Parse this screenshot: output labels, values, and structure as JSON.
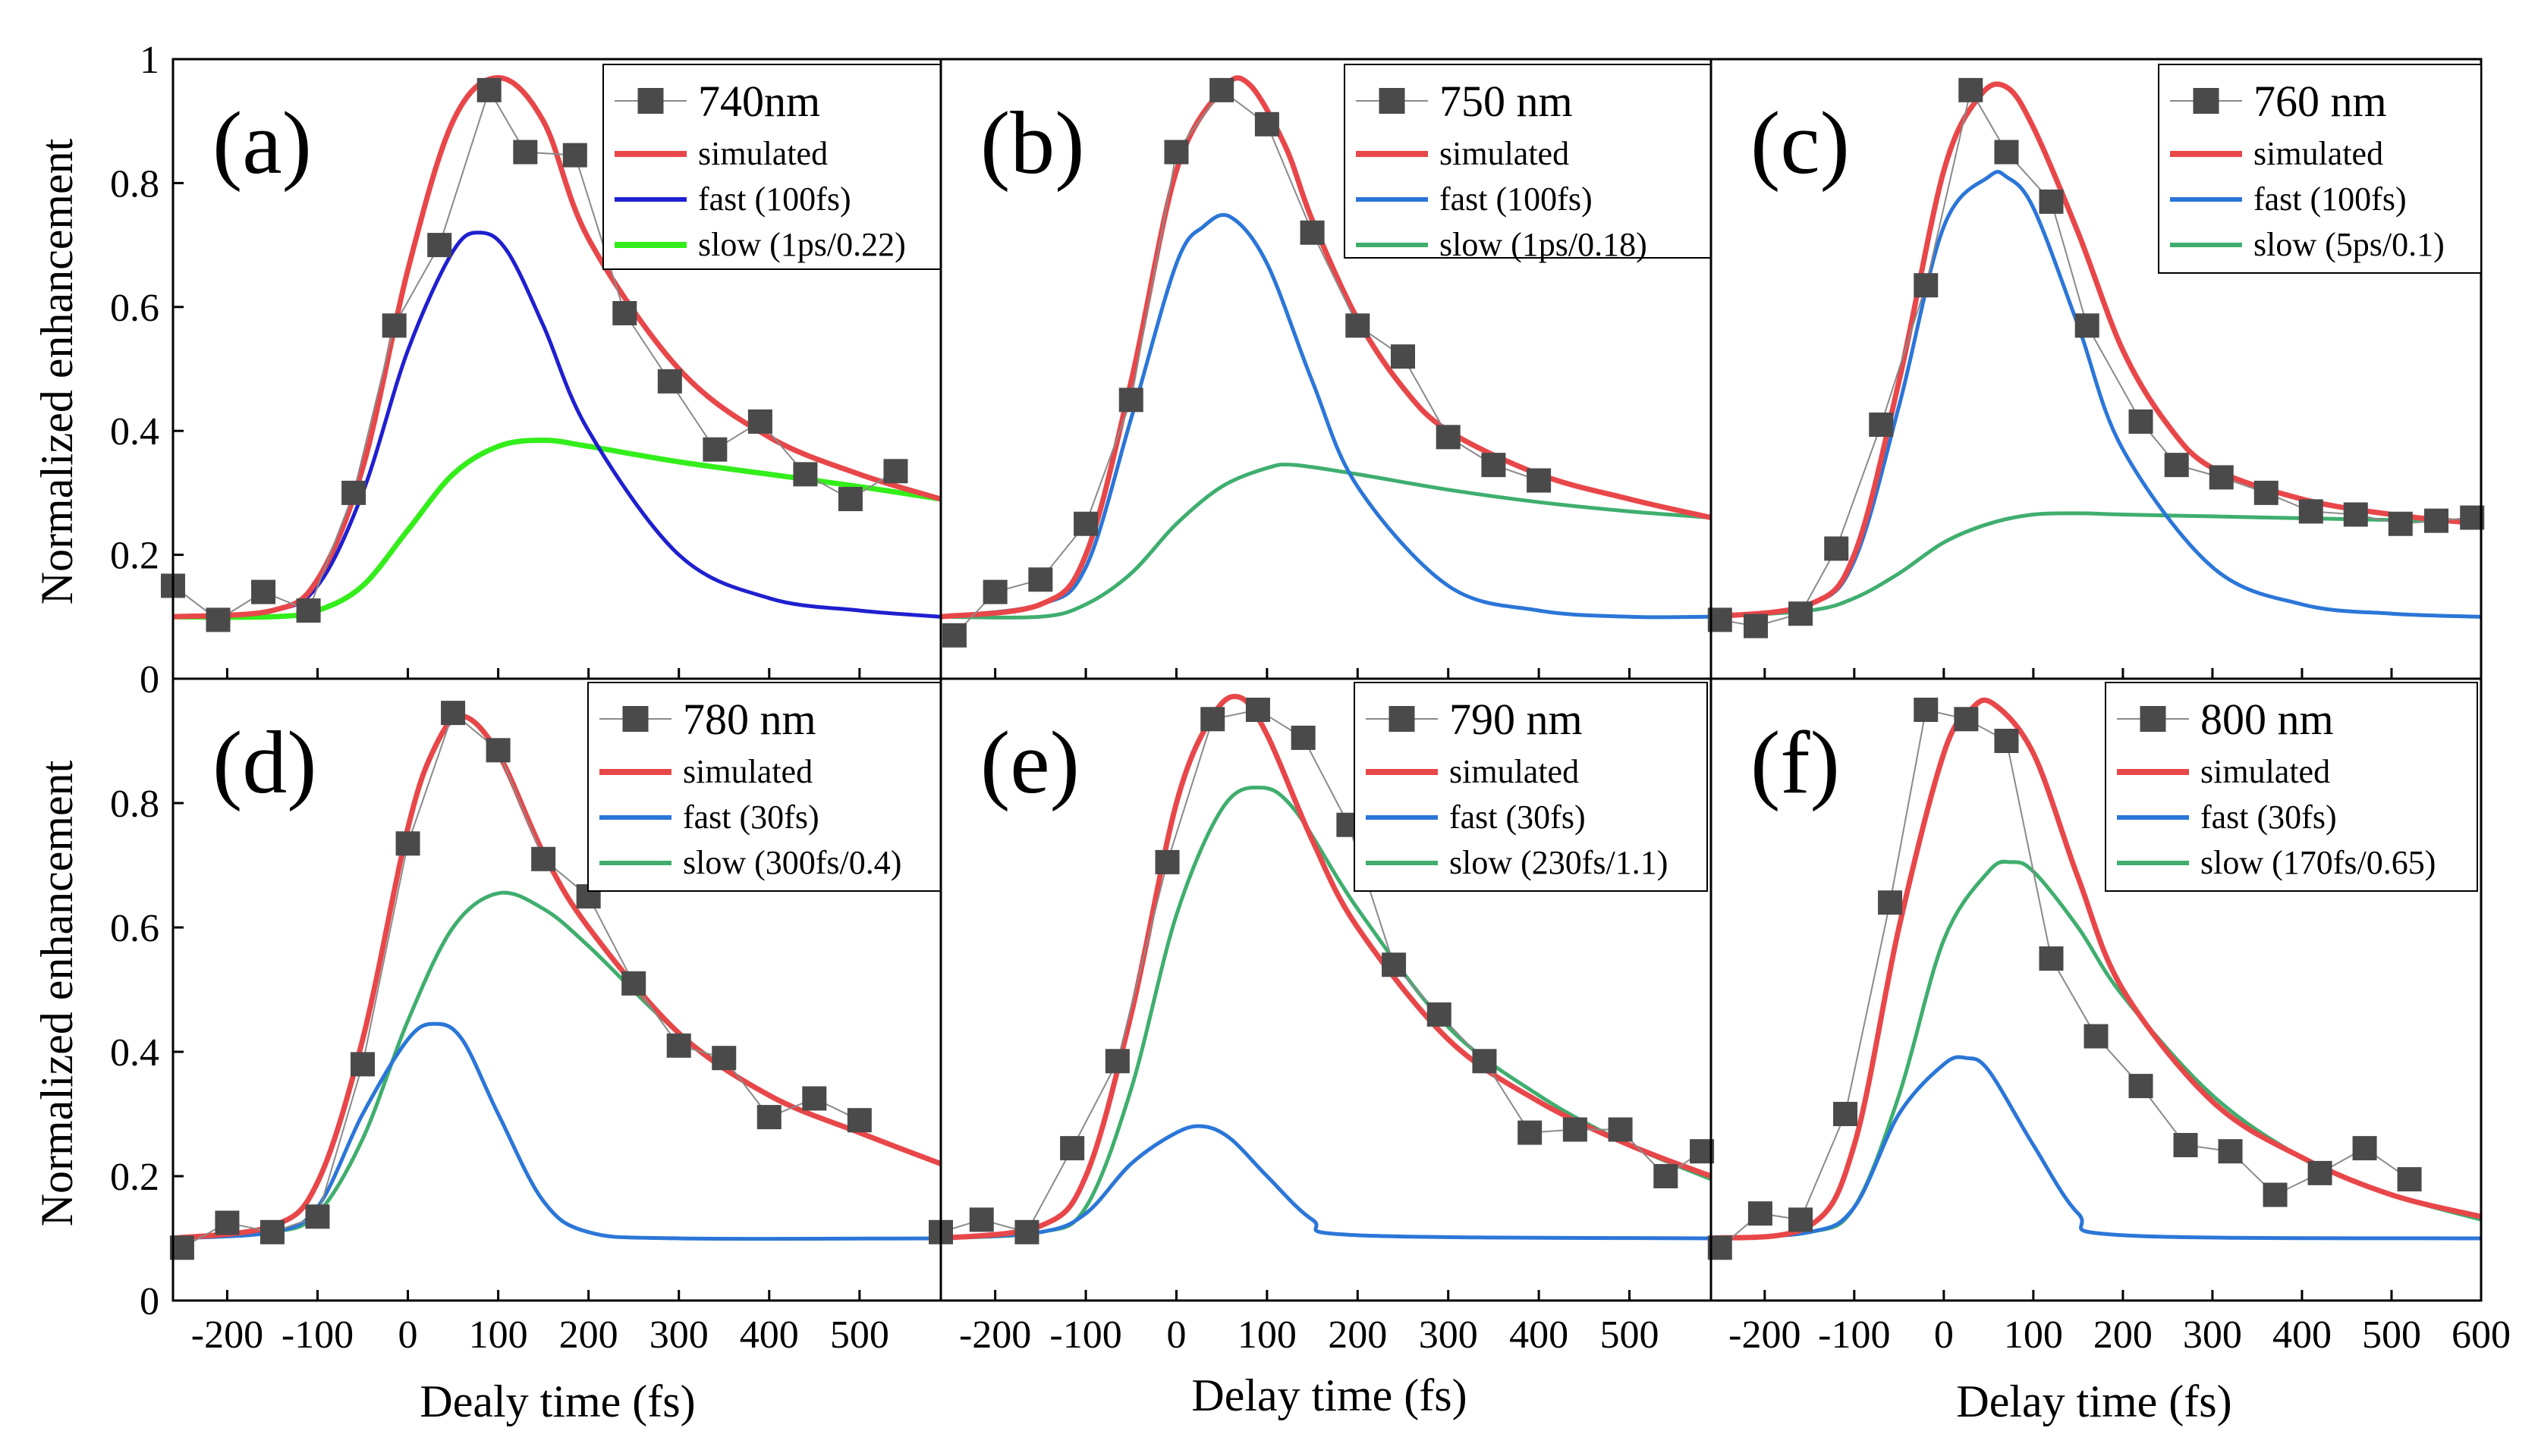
{
  "figure": {
    "ylabel": "Normalized enhancement",
    "xlabels": [
      "Dealy time (fs)",
      "Delay time (fs)",
      "Delay time (fs)"
    ],
    "yticks_top": [
      "0",
      "0.2",
      "0.4",
      "0.6",
      "0.8",
      "1"
    ],
    "yticks_bottom": [
      "0",
      "0.2",
      "0.4",
      "0.6",
      "0.8"
    ],
    "xticks_left": [
      "-200",
      "-100",
      "0",
      "100",
      "200",
      "300",
      "400",
      "500"
    ],
    "xticks_mid": [
      "-200",
      "-100",
      "0",
      "100",
      "200",
      "300",
      "400",
      "500"
    ],
    "xticks_right": [
      "-200",
      "-100",
      "0",
      "100",
      "200",
      "300",
      "400",
      "500",
      "600"
    ]
  },
  "colors": {
    "simulated": "#e8474a",
    "fast_a": "#1f1fd0",
    "slow_a": "#33ee1a",
    "fast": "#2b76d8",
    "slow": "#3fae6e",
    "data": "#4a4a4a"
  },
  "chart_data": [
    {
      "type": "line",
      "panel": "(a)",
      "xlim": [
        -260,
        590
      ],
      "ylim": [
        0,
        1
      ],
      "legend": {
        "data": "740nm",
        "simulated": "simulated",
        "fast": "fast (100fs)",
        "slow": "slow (1ps/0.22)"
      },
      "data_x": [
        -260,
        -210,
        -160,
        -110,
        -60,
        -15,
        35,
        90,
        130,
        185,
        240,
        290,
        340,
        390,
        440,
        490,
        540
      ],
      "data_y": [
        0.15,
        0.095,
        0.14,
        0.11,
        0.3,
        0.57,
        0.7,
        0.95,
        0.85,
        0.845,
        0.59,
        0.48,
        0.37,
        0.415,
        0.33,
        0.29,
        0.335
      ],
      "series": [
        {
          "name": "simulated",
          "x": [
            -260,
            -150,
            -100,
            -50,
            0,
            50,
            100,
            150,
            200,
            300,
            400,
            500,
            590
          ],
          "y": [
            0.1,
            0.11,
            0.16,
            0.34,
            0.66,
            0.9,
            0.97,
            0.9,
            0.71,
            0.5,
            0.39,
            0.33,
            0.29
          ]
        },
        {
          "name": "fast",
          "x": [
            -260,
            -150,
            -100,
            -50,
            0,
            50,
            80,
            110,
            150,
            200,
            300,
            400,
            500,
            590
          ],
          "y": [
            0.1,
            0.11,
            0.15,
            0.3,
            0.53,
            0.69,
            0.72,
            0.69,
            0.57,
            0.4,
            0.2,
            0.13,
            0.11,
            0.1
          ]
        },
        {
          "name": "slow",
          "x": [
            -260,
            -150,
            -100,
            -50,
            0,
            50,
            100,
            150,
            200,
            300,
            400,
            500,
            590
          ],
          "y": [
            0.1,
            0.1,
            0.11,
            0.15,
            0.24,
            0.33,
            0.375,
            0.385,
            0.375,
            0.35,
            0.33,
            0.31,
            0.29
          ]
        }
      ]
    },
    {
      "type": "line",
      "panel": "(b)",
      "xlim": [
        -260,
        590
      ],
      "ylim": [
        0,
        1
      ],
      "legend": {
        "data": "750 nm",
        "simulated": "simulated",
        "fast": "fast (100fs)",
        "slow": "slow (1ps/0.18)"
      },
      "data_x": [
        -245,
        -200,
        -150,
        -100,
        -50,
        0,
        50,
        100,
        150,
        200,
        250,
        300,
        350,
        400
      ],
      "data_y": [
        0.07,
        0.14,
        0.16,
        0.25,
        0.45,
        0.85,
        0.95,
        0.895,
        0.72,
        0.57,
        0.52,
        0.39,
        0.345,
        0.32
      ],
      "series": [
        {
          "name": "simulated",
          "x": [
            -260,
            -150,
            -100,
            -50,
            0,
            50,
            80,
            120,
            150,
            200,
            250,
            300,
            400,
            500,
            590
          ],
          "y": [
            0.1,
            0.12,
            0.2,
            0.48,
            0.82,
            0.95,
            0.96,
            0.86,
            0.74,
            0.58,
            0.47,
            0.4,
            0.33,
            0.29,
            0.26
          ]
        },
        {
          "name": "fast",
          "x": [
            -260,
            -150,
            -100,
            -50,
            0,
            30,
            60,
            100,
            150,
            200,
            300,
            400,
            500,
            590
          ],
          "y": [
            0.1,
            0.12,
            0.18,
            0.42,
            0.67,
            0.73,
            0.745,
            0.67,
            0.48,
            0.31,
            0.15,
            0.11,
            0.1,
            0.1
          ]
        },
        {
          "name": "slow",
          "x": [
            -260,
            -150,
            -100,
            -50,
            0,
            50,
            100,
            130,
            200,
            300,
            400,
            500,
            590
          ],
          "y": [
            0.1,
            0.1,
            0.12,
            0.17,
            0.25,
            0.31,
            0.34,
            0.345,
            0.33,
            0.305,
            0.285,
            0.27,
            0.26
          ]
        }
      ]
    },
    {
      "type": "line",
      "panel": "(c)",
      "xlim": [
        -260,
        600
      ],
      "ylim": [
        0,
        1
      ],
      "legend": {
        "data": "760 nm",
        "simulated": "simulated",
        "fast": "fast (100fs)",
        "slow": "slow (5ps/0.1)"
      },
      "data_x": [
        -250,
        -210,
        -160,
        -120,
        -70,
        -20,
        30,
        70,
        120,
        160,
        220,
        260,
        310,
        360,
        410,
        460,
        510,
        550,
        590
      ],
      "data_y": [
        0.095,
        0.085,
        0.105,
        0.21,
        0.41,
        0.635,
        0.95,
        0.85,
        0.77,
        0.57,
        0.415,
        0.345,
        0.325,
        0.3,
        0.27,
        0.265,
        0.25,
        0.255,
        0.26
      ],
      "series": [
        {
          "name": "simulated",
          "x": [
            -260,
            -150,
            -100,
            -50,
            0,
            40,
            70,
            100,
            150,
            200,
            250,
            300,
            400,
            500,
            600
          ],
          "y": [
            0.1,
            0.12,
            0.2,
            0.48,
            0.82,
            0.94,
            0.955,
            0.89,
            0.72,
            0.53,
            0.41,
            0.34,
            0.29,
            0.265,
            0.25
          ]
        },
        {
          "name": "fast",
          "x": [
            -260,
            -150,
            -100,
            -50,
            0,
            50,
            70,
            100,
            150,
            200,
            300,
            400,
            500,
            600
          ],
          "y": [
            0.1,
            0.12,
            0.19,
            0.44,
            0.73,
            0.81,
            0.81,
            0.76,
            0.57,
            0.37,
            0.18,
            0.12,
            0.105,
            0.1
          ]
        },
        {
          "name": "slow",
          "x": [
            -260,
            -150,
            -100,
            -50,
            0,
            50,
            100,
            150,
            200,
            300,
            400,
            500,
            600
          ],
          "y": [
            0.1,
            0.11,
            0.13,
            0.17,
            0.22,
            0.25,
            0.265,
            0.267,
            0.265,
            0.262,
            0.259,
            0.256,
            0.253
          ]
        }
      ]
    },
    {
      "type": "line",
      "panel": "(d)",
      "xlim": [
        -260,
        590
      ],
      "ylim": [
        0,
        1
      ],
      "legend": {
        "data": "780 nm",
        "simulated": "simulated",
        "fast": "fast (30fs)",
        "slow": "slow (300fs/0.4)"
      },
      "data_x": [
        -250,
        -200,
        -150,
        -100,
        -50,
        0,
        50,
        100,
        150,
        200,
        250,
        300,
        350,
        400,
        450,
        500
      ],
      "data_y": [
        0.085,
        0.125,
        0.11,
        0.135,
        0.38,
        0.735,
        0.945,
        0.885,
        0.71,
        0.65,
        0.51,
        0.41,
        0.39,
        0.295,
        0.325,
        0.29
      ],
      "series": [
        {
          "name": "simulated",
          "x": [
            -260,
            -150,
            -100,
            -50,
            0,
            30,
            60,
            100,
            150,
            200,
            300,
            400,
            500,
            590
          ],
          "y": [
            0.1,
            0.12,
            0.19,
            0.42,
            0.76,
            0.89,
            0.94,
            0.88,
            0.72,
            0.6,
            0.43,
            0.33,
            0.27,
            0.22
          ]
        },
        {
          "name": "fast",
          "x": [
            -260,
            -150,
            -100,
            -50,
            0,
            30,
            60,
            100,
            150,
            200,
            300,
            590
          ],
          "y": [
            0.1,
            0.11,
            0.15,
            0.3,
            0.42,
            0.445,
            0.42,
            0.3,
            0.16,
            0.11,
            0.1,
            0.1
          ]
        },
        {
          "name": "slow",
          "x": [
            -260,
            -150,
            -100,
            -50,
            0,
            50,
            100,
            150,
            200,
            300,
            400,
            500,
            590
          ],
          "y": [
            0.1,
            0.11,
            0.14,
            0.26,
            0.45,
            0.6,
            0.655,
            0.63,
            0.57,
            0.43,
            0.33,
            0.27,
            0.22
          ]
        }
      ]
    },
    {
      "type": "line",
      "panel": "(e)",
      "xlim": [
        -260,
        590
      ],
      "ylim": [
        0,
        1
      ],
      "legend": {
        "data": "790 nm",
        "simulated": "simulated",
        "fast": "fast (30fs)",
        "slow": "slow (230fs/1.1)"
      },
      "data_x": [
        -260,
        -215,
        -165,
        -115,
        -65,
        -10,
        40,
        90,
        140,
        190,
        240,
        290,
        340,
        390,
        440,
        490,
        540,
        580
      ],
      "data_y": [
        0.11,
        0.13,
        0.11,
        0.245,
        0.385,
        0.705,
        0.935,
        0.95,
        0.905,
        0.765,
        0.54,
        0.46,
        0.385,
        0.27,
        0.275,
        0.275,
        0.2,
        0.24
      ],
      "series": [
        {
          "name": "simulated",
          "x": [
            -260,
            -150,
            -100,
            -50,
            0,
            40,
            70,
            100,
            150,
            200,
            300,
            400,
            500,
            590
          ],
          "y": [
            0.1,
            0.12,
            0.2,
            0.46,
            0.8,
            0.94,
            0.97,
            0.91,
            0.74,
            0.6,
            0.42,
            0.32,
            0.25,
            0.2
          ]
        },
        {
          "name": "fast",
          "x": [
            -260,
            -150,
            -100,
            -50,
            0,
            30,
            60,
            100,
            150,
            200,
            590
          ],
          "y": [
            0.1,
            0.11,
            0.14,
            0.22,
            0.27,
            0.28,
            0.26,
            0.2,
            0.13,
            0.105,
            0.1
          ]
        },
        {
          "name": "slow",
          "x": [
            -260,
            -150,
            -100,
            -50,
            0,
            50,
            90,
            130,
            200,
            300,
            400,
            500,
            590
          ],
          "y": [
            0.1,
            0.11,
            0.15,
            0.34,
            0.62,
            0.79,
            0.825,
            0.79,
            0.63,
            0.44,
            0.33,
            0.25,
            0.195
          ]
        }
      ]
    },
    {
      "type": "line",
      "panel": "(f)",
      "xlim": [
        -260,
        600
      ],
      "ylim": [
        0,
        1
      ],
      "legend": {
        "data": "800 nm",
        "simulated": "simulated",
        "fast": "fast (30fs)",
        "slow": "slow (170fs/0.65)"
      },
      "data_x": [
        -250,
        -205,
        -160,
        -110,
        -60,
        -20,
        25,
        70,
        120,
        170,
        220,
        270,
        320,
        370,
        420,
        470,
        520
      ],
      "data_y": [
        0.085,
        0.14,
        0.13,
        0.3,
        0.64,
        0.95,
        0.935,
        0.9,
        0.55,
        0.425,
        0.345,
        0.25,
        0.24,
        0.17,
        0.205,
        0.245,
        0.195
      ],
      "series": [
        {
          "name": "simulated",
          "x": [
            -260,
            -150,
            -100,
            -50,
            0,
            30,
            55,
            100,
            150,
            200,
            300,
            400,
            500,
            600
          ],
          "y": [
            0.1,
            0.12,
            0.25,
            0.6,
            0.88,
            0.95,
            0.96,
            0.88,
            0.68,
            0.5,
            0.32,
            0.23,
            0.17,
            0.135
          ]
        },
        {
          "name": "fast",
          "x": [
            -260,
            -150,
            -100,
            -50,
            0,
            25,
            50,
            100,
            150,
            200,
            600
          ],
          "y": [
            0.1,
            0.11,
            0.15,
            0.3,
            0.38,
            0.39,
            0.37,
            0.25,
            0.14,
            0.105,
            0.1
          ]
        },
        {
          "name": "slow",
          "x": [
            -260,
            -150,
            -100,
            -50,
            0,
            50,
            75,
            100,
            150,
            200,
            300,
            400,
            500,
            600
          ],
          "y": [
            0.1,
            0.11,
            0.15,
            0.33,
            0.58,
            0.69,
            0.705,
            0.69,
            0.6,
            0.49,
            0.33,
            0.23,
            0.17,
            0.13
          ]
        }
      ]
    }
  ]
}
